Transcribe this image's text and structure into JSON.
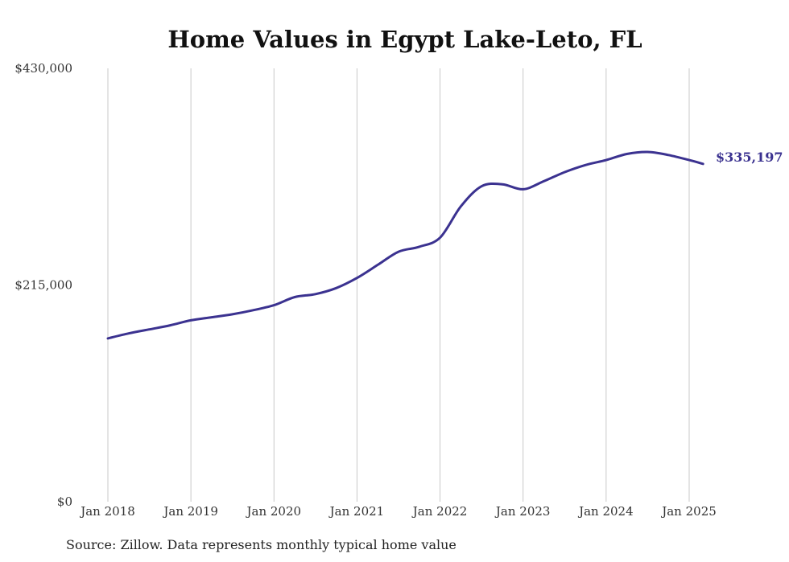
{
  "chart_data": {
    "type": "line",
    "title": "Home Values in Egypt Lake-Leto, FL",
    "xlabel": "",
    "ylabel": "",
    "ylim": [
      0,
      430000
    ],
    "y_tick_values": [
      0,
      215000,
      430000
    ],
    "y_tick_labels": [
      "$0",
      "$215,000",
      "$430,000"
    ],
    "x_tick_labels": [
      "Jan 2018",
      "Jan 2019",
      "Jan 2020",
      "Jan 2021",
      "Jan 2022",
      "Jan 2023",
      "Jan 2024",
      "Jan 2025"
    ],
    "x_tick_dates": [
      "2018-01",
      "2019-01",
      "2020-01",
      "2021-01",
      "2022-01",
      "2023-01",
      "2024-01",
      "2025-01"
    ],
    "grid": "vertical",
    "line_color": "#3b3290",
    "end_label": "$335,197",
    "series": [
      {
        "x": [
          "2018-01",
          "2018-04",
          "2018-07",
          "2018-10",
          "2019-01",
          "2019-04",
          "2019-07",
          "2019-10",
          "2020-01",
          "2020-04",
          "2020-07",
          "2020-10",
          "2021-01",
          "2021-04",
          "2021-07",
          "2021-10",
          "2022-01",
          "2022-04",
          "2022-07",
          "2022-10",
          "2023-01",
          "2023-04",
          "2023-07",
          "2023-10",
          "2024-01",
          "2024-04",
          "2024-07",
          "2024-10",
          "2025-01",
          "2025-03"
        ],
        "values": [
          162000,
          167000,
          171000,
          175000,
          180000,
          183000,
          186000,
          190000,
          195000,
          203000,
          206000,
          212000,
          222000,
          235000,
          248000,
          253000,
          262000,
          293000,
          313000,
          315000,
          310000,
          318000,
          327000,
          334000,
          339000,
          345000,
          347000,
          344000,
          339000,
          335197
        ]
      }
    ]
  },
  "source_note": "Source: Zillow. Data represents monthly typical home value"
}
